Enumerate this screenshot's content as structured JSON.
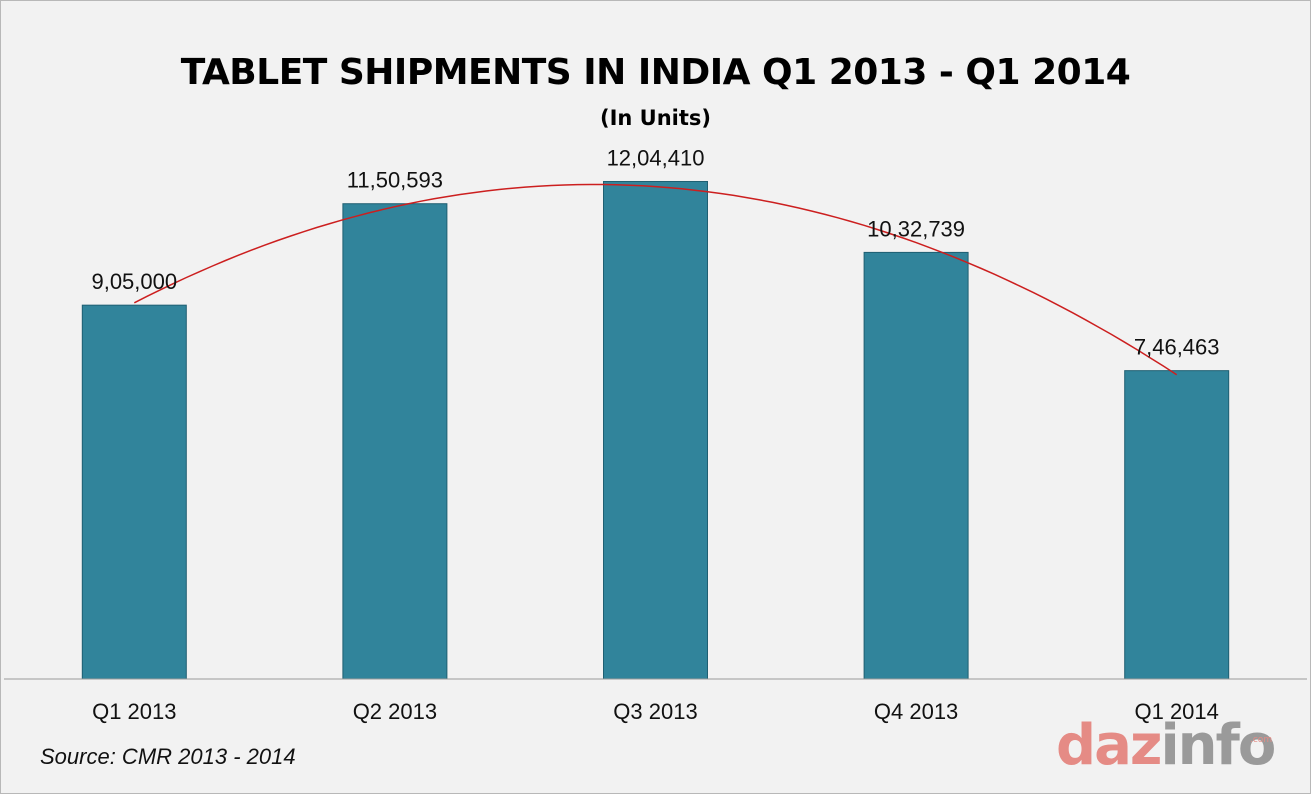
{
  "chart_data": {
    "type": "bar",
    "title": "TABLET SHIPMENTS IN INDIA Q1 2013 - Q1 2014",
    "subtitle": "(In Units)",
    "categories": [
      "Q1 2013",
      "Q2 2013",
      "Q3 2013",
      "Q4 2013",
      "Q1 2014"
    ],
    "values": [
      905000,
      1150593,
      1204410,
      1032739,
      746463
    ],
    "value_labels": [
      "9,05,000",
      "11,50,593",
      "12,04,410",
      "10,32,739",
      "7,46,463"
    ],
    "ylim": [
      0,
      1300000
    ],
    "grid": false,
    "trendline": {
      "type": "polynomial",
      "color": "#cc1f1f"
    },
    "bar_color": "#31849b",
    "bar_edge_color": "#1f5f72"
  },
  "source": "Source: CMR 2013 - 2014",
  "logo": {
    "part1": "daz",
    "part2": "info",
    "suffix": ".com"
  },
  "colors": {
    "background": "#f2f2f2",
    "bar": "#31849b",
    "trend": "#cc1f1f",
    "logo_accent": "#e58b85",
    "logo_gray": "#9a9a9a"
  }
}
